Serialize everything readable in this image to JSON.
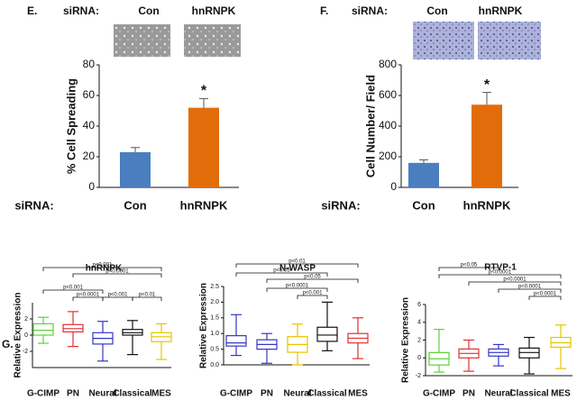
{
  "chart_data": [
    {
      "type": "bar",
      "panel_label": "E.",
      "header_label": "siRNA:",
      "header_items": [
        "Con",
        "hnRNPK"
      ],
      "axis_label": "siRNA:",
      "categories": [
        "Con",
        "hnRNPK"
      ],
      "values": [
        23,
        52
      ],
      "errors": [
        3,
        6
      ],
      "colors": [
        "#4a7ebf",
        "#e36c0a"
      ],
      "ylabel": "% Cell Spreading",
      "ylim": [
        0,
        80
      ],
      "yticks": [
        0,
        20,
        40,
        60,
        80
      ],
      "annotations": [
        {
          "text": "*",
          "category": "hnRNPK"
        }
      ]
    },
    {
      "type": "bar",
      "panel_label": "F.",
      "header_label": "siRNA:",
      "header_items": [
        "Con",
        "hnRNPK"
      ],
      "axis_label": "siRNA:",
      "categories": [
        "Con",
        "hnRNPK"
      ],
      "values": [
        160,
        540
      ],
      "errors": [
        20,
        80
      ],
      "colors": [
        "#4a7ebf",
        "#e36c0a"
      ],
      "ylabel": "Cell Number/ Field",
      "ylim": [
        0,
        800
      ],
      "yticks": [
        0,
        200,
        400,
        600,
        800
      ],
      "annotations": [
        {
          "text": "*",
          "category": "hnRNPK"
        }
      ]
    },
    {
      "type": "box",
      "panel_label": "G.",
      "title": "hnRNPK",
      "ylabel": "Relative Expression",
      "categories": [
        "G-CIMP",
        "PN",
        "Neural",
        "Classical",
        "MES"
      ],
      "colors": [
        "#5fd13a",
        "#e03030",
        "#3535c8",
        "#111111",
        "#e6c400"
      ],
      "boxes": [
        {
          "min": -1.0,
          "q1": 0.0,
          "median": 0.6,
          "q3": 1.4,
          "max": 2.2
        },
        {
          "min": -1.4,
          "q1": 0.4,
          "median": 0.8,
          "q3": 1.3,
          "max": 2.9
        },
        {
          "min": -3.2,
          "q1": -1.1,
          "median": -0.4,
          "q3": 0.3,
          "max": 1.7
        },
        {
          "min": -2.4,
          "q1": 0.0,
          "median": 0.3,
          "q3": 0.7,
          "max": 1.8
        },
        {
          "min": -3.0,
          "q1": -0.8,
          "median": -0.2,
          "q3": 0.3,
          "max": 1.4
        }
      ],
      "ylim": [
        -4,
        4
      ],
      "yticks": [
        -2,
        0,
        2
      ],
      "annotations": [
        {
          "text": "p<0.001",
          "from": "G-CIMP",
          "to": "MES"
        },
        {
          "text": "p<0.0001",
          "from": "PN",
          "to": "MES"
        },
        {
          "text": "p<0.001",
          "from": "G-CIMP",
          "to": "Neural"
        },
        {
          "text": "p<0.0001",
          "from": "PN",
          "to": "Neural"
        },
        {
          "text": "p<0.001",
          "from": "Neural",
          "to": "Classical"
        },
        {
          "text": "p<0.01",
          "from": "Classical",
          "to": "MES"
        }
      ]
    },
    {
      "type": "box",
      "title": "N-WASP",
      "ylabel": "Relative Expression",
      "categories": [
        "G-CIMP",
        "PN",
        "Neural",
        "Classical",
        "MES"
      ],
      "colors": [
        "#3535c8",
        "#3535c8",
        "#e6c400",
        "#111111",
        "#e03030"
      ],
      "boxes": [
        {
          "min": 0.3,
          "q1": 0.6,
          "median": 0.7,
          "q3": 0.93,
          "max": 1.6
        },
        {
          "min": 0.05,
          "q1": 0.5,
          "median": 0.65,
          "q3": 0.8,
          "max": 1.0
        },
        {
          "min": 0.0,
          "q1": 0.4,
          "median": 0.65,
          "q3": 0.9,
          "max": 1.3
        },
        {
          "min": 0.45,
          "q1": 0.75,
          "median": 0.95,
          "q3": 1.2,
          "max": 2.0
        },
        {
          "min": 0.2,
          "q1": 0.7,
          "median": 0.85,
          "q3": 1.0,
          "max": 1.5
        }
      ],
      "ylim": [
        0,
        2.5
      ],
      "yticks": [
        {
          "value": 0,
          "label": "0.0"
        },
        {
          "value": 0.5,
          "label": "0.5"
        },
        {
          "value": 1,
          "label": "1.0"
        },
        {
          "value": 1.5,
          "label": "1.5"
        },
        {
          "value": 2,
          "label": "2.0"
        },
        {
          "value": 2.5,
          "label": "2.5"
        }
      ],
      "annotations": [
        {
          "text": "p<0.01",
          "from": "G-CIMP",
          "to": "MES"
        },
        {
          "text": "p<0.05",
          "from": "G-CIMP",
          "to": "Classical"
        },
        {
          "text": "p<0.05",
          "from": "PN",
          "to": "MES"
        },
        {
          "text": "p<0.0001",
          "from": "PN",
          "to": "Classical"
        },
        {
          "text": "p<0.001",
          "from": "Neural",
          "to": "Classical"
        }
      ]
    },
    {
      "type": "box",
      "title": "RTVP-1",
      "ylabel": "Relative Expression",
      "categories": [
        "G-CIMP",
        "PN",
        "Neural",
        "Classical",
        "MES"
      ],
      "colors": [
        "#5fd13a",
        "#e03030",
        "#3535c8",
        "#111111",
        "#e6c400"
      ],
      "boxes": [
        {
          "min": -1.6,
          "q1": -0.8,
          "median": -0.1,
          "q3": 0.6,
          "max": 3.2
        },
        {
          "min": -1.5,
          "q1": 0.0,
          "median": 0.5,
          "q3": 1.0,
          "max": 2.0
        },
        {
          "min": -0.9,
          "q1": 0.2,
          "median": 0.6,
          "q3": 1.0,
          "max": 1.5
        },
        {
          "min": -1.8,
          "q1": 0.0,
          "median": 0.6,
          "q3": 1.1,
          "max": 2.3
        },
        {
          "min": -1.2,
          "q1": 1.2,
          "median": 1.7,
          "q3": 2.3,
          "max": 3.7
        }
      ],
      "ylim": [
        -2,
        6
      ],
      "yticks": [
        -2,
        0,
        2,
        4,
        6
      ],
      "annotations": [
        {
          "text": "p<0.05",
          "from": "G-CIMP",
          "to": "Neural"
        },
        {
          "text": "p<0.0001",
          "from": "G-CIMP",
          "to": "MES"
        },
        {
          "text": "p<0.0001",
          "from": "PN",
          "to": "MES"
        },
        {
          "text": "p<0.0001",
          "from": "Neural",
          "to": "MES"
        },
        {
          "text": "p<0.0001",
          "from": "Classical",
          "to": "MES"
        }
      ]
    }
  ]
}
